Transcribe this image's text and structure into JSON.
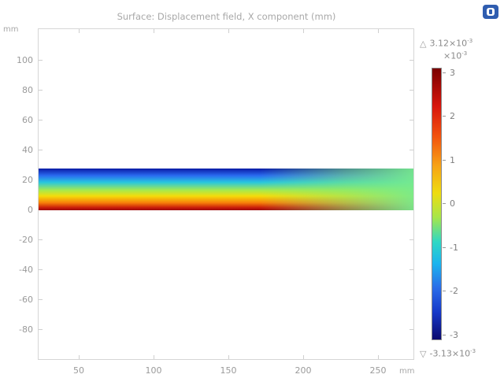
{
  "plot": {
    "title": "Surface: Displacement field, X component (mm)",
    "y_unit": "mm",
    "x_unit": "mm",
    "y_ticks": [
      "100",
      "80",
      "60",
      "40",
      "20",
      "0",
      "-20",
      "-40",
      "-60",
      "-80"
    ],
    "x_ticks": [
      "50",
      "100",
      "150",
      "200",
      "250"
    ]
  },
  "colorbar": {
    "max_label": "3.12×10",
    "max_exp": "-3",
    "scale_label": "×10",
    "scale_exp": "-3",
    "ticks": [
      "3",
      "2",
      "1",
      "0",
      "-1",
      "-2",
      "-3"
    ],
    "min_label": "-3.13×10",
    "min_exp": "-3",
    "max_marker": "△",
    "min_marker": "▽"
  },
  "colors": {
    "beam_top": "#0a1aa6",
    "beam_bottom": "#9a0a0a",
    "colorbar_top": "#7a0000",
    "colorbar_bottom": "#0b0a6e"
  },
  "icons": {
    "logo": "app-logo-icon"
  }
}
